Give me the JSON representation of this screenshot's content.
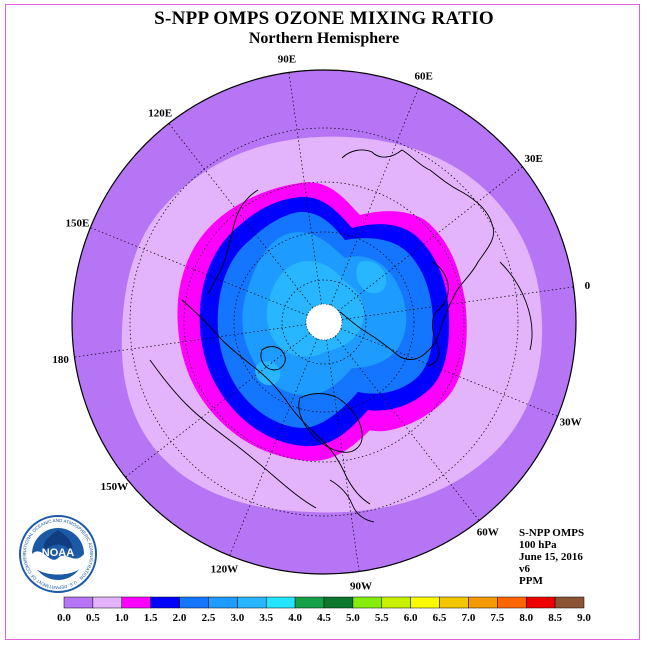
{
  "header": {
    "title": "S-NPP OMPS OZONE MIXING RATIO",
    "subtitle": "Northern Hemisphere"
  },
  "map": {
    "projection": "north-polar-stereographic",
    "lon_labels": [
      {
        "name": "90E",
        "lon": 90
      },
      {
        "name": "60E",
        "lon": 60
      },
      {
        "name": "30E",
        "lon": 30
      },
      {
        "name": "0",
        "lon": 0
      },
      {
        "name": "30W",
        "lon": -30
      },
      {
        "name": "60W",
        "lon": -60
      },
      {
        "name": "90W",
        "lon": -90
      },
      {
        "name": "120W",
        "lon": -120
      },
      {
        "name": "150W",
        "lon": -150
      },
      {
        "name": "180",
        "lon": 180
      },
      {
        "name": "150E",
        "lon": 150
      },
      {
        "name": "120E",
        "lon": 120
      }
    ],
    "pole_missing_color": "#ffffff"
  },
  "info": {
    "instrument": "S-NPP OMPS",
    "level": "100 hPa",
    "date": "June 15, 2016",
    "version": "v6",
    "units": "PPM"
  },
  "logo": {
    "text": "NOAA",
    "ring_text": "NATIONAL OCEANIC AND ATMOSPHERIC ADMINISTRATION · U.S. DEPARTMENT OF COMMERCE"
  },
  "colorbar": {
    "ticks": [
      "0.0",
      "0.5",
      "1.0",
      "1.5",
      "2.0",
      "2.5",
      "3.0",
      "3.5",
      "4.0",
      "4.5",
      "5.0",
      "5.5",
      "6.0",
      "6.5",
      "7.0",
      "7.5",
      "8.0",
      "8.5",
      "9.0"
    ],
    "colors": [
      "#b675f5",
      "#e3b4fb",
      "#ff00ff",
      "#0000ff",
      "#1475ff",
      "#1e9bff",
      "#27b6ff",
      "#24e4ff",
      "#16a04a",
      "#0b7830",
      "#86ec0e",
      "#c8f100",
      "#fafa00",
      "#f4c600",
      "#f49a00",
      "#ff6600",
      "#ee0000",
      "#8b5535"
    ]
  },
  "field": {
    "levels": [
      {
        "value": 0.5,
        "color": "#b675f5"
      },
      {
        "value": 1.0,
        "color": "#e3b4fb"
      },
      {
        "value": 1.5,
        "color": "#ff00ff"
      },
      {
        "value": 2.0,
        "color": "#0000ff"
      },
      {
        "value": 2.5,
        "color": "#1475ff"
      },
      {
        "value": 3.0,
        "color": "#1e9bff"
      },
      {
        "value": 3.5,
        "color": "#27b6ff"
      }
    ]
  }
}
